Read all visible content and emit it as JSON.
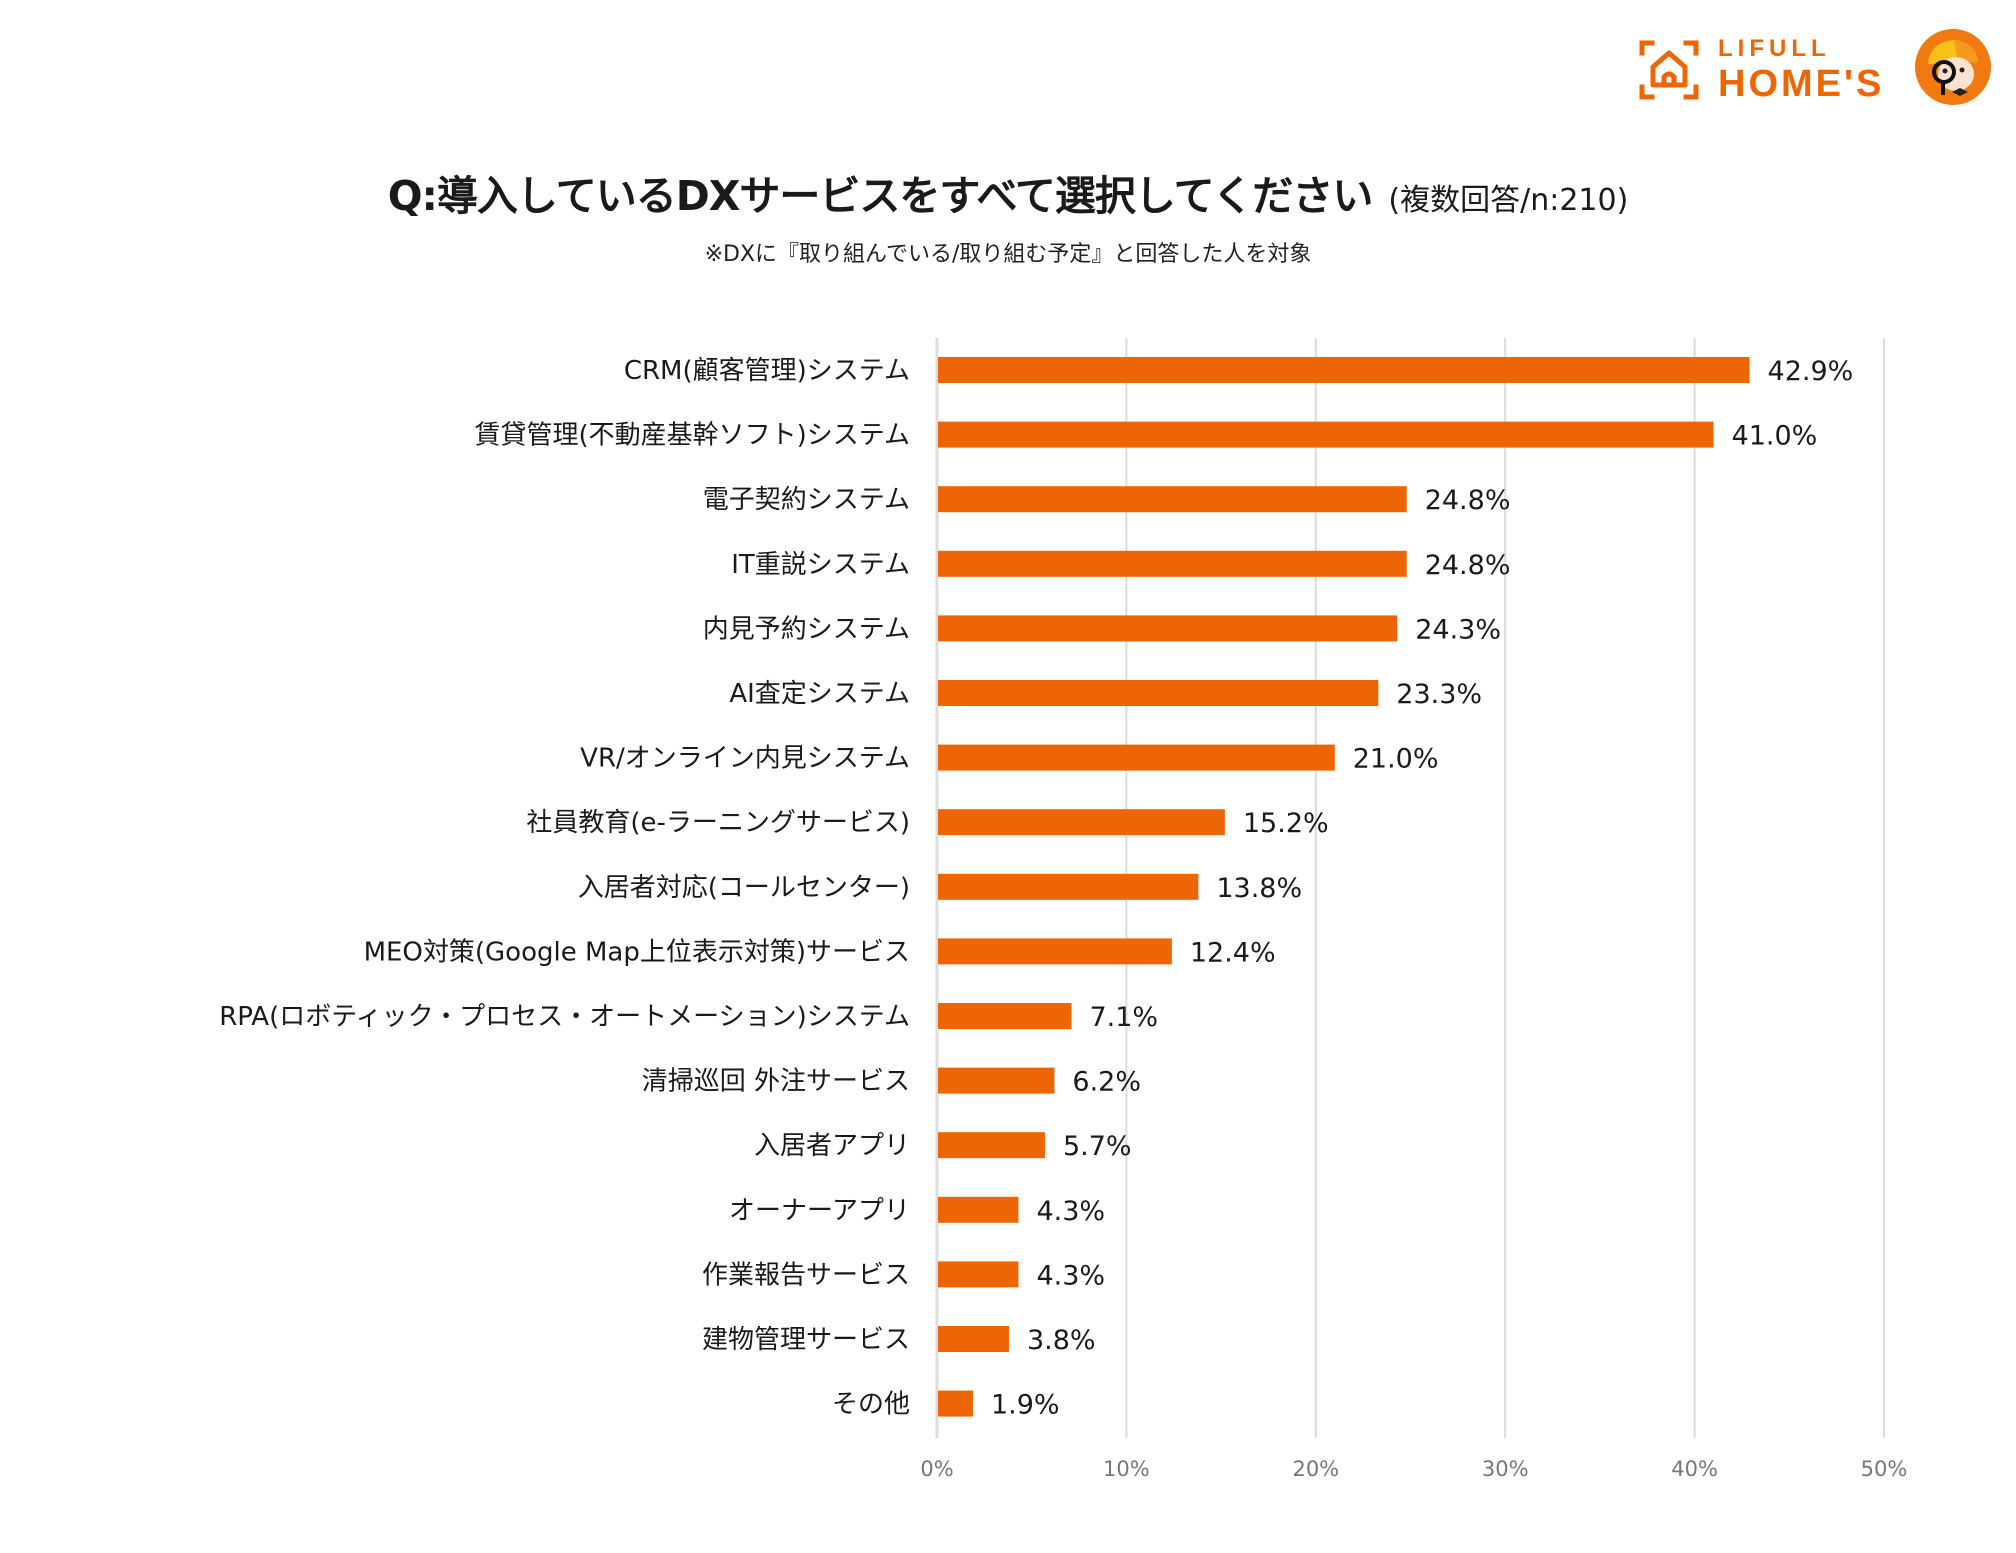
{
  "brand": {
    "line1": "LIFULL",
    "line2": "HOME'S",
    "color": "#ee6505"
  },
  "title": {
    "main": "Q:導入しているDXサービスをすべて選択してください",
    "note": "(複数回答/n:210)",
    "subtitle": "※DXに『取り組んでいる/取り組む予定』と回答した人を対象"
  },
  "chart_data": {
    "type": "bar",
    "orientation": "horizontal",
    "title": "Q:導入しているDXサービスをすべて選択してください(複数回答/n:210)",
    "subtitle": "※DXに『取り組んでいる/取り組む予定』と回答した人を対象",
    "xlabel": "",
    "ylabel": "",
    "xlim": [
      0,
      50
    ],
    "xticks": [
      0,
      10,
      20,
      30,
      40,
      50
    ],
    "xtick_labels": [
      "0%",
      "10%",
      "20%",
      "30%",
      "40%",
      "50%"
    ],
    "grid": true,
    "bar_color": "#ee6505",
    "categories": [
      "CRM(顧客管理)システム",
      "賃貸管理(不動産基幹ソフト)システム",
      "電子契約システム",
      "IT重説システム",
      "内見予約システム",
      "AI査定システム",
      "VR/オンライン内見システム",
      "社員教育(e-ラーニングサービス)",
      "入居者対応(コールセンター)",
      "MEO対策(Google Map上位表示対策)サービス",
      "RPA(ロボティック・プロセス・オートメーション)システム",
      "清掃巡回 外注サービス",
      "入居者アプリ",
      "オーナーアプリ",
      "作業報告サービス",
      "建物管理サービス",
      "その他"
    ],
    "values": [
      42.9,
      41.0,
      24.8,
      24.8,
      24.3,
      23.3,
      21.0,
      15.2,
      13.8,
      12.4,
      7.1,
      6.2,
      5.7,
      4.3,
      4.3,
      3.8,
      1.9
    ],
    "value_labels": [
      "42.9%",
      "41.0%",
      "24.8%",
      "24.8%",
      "24.3%",
      "23.3%",
      "21.0%",
      "15.2%",
      "13.8%",
      "12.4%",
      "7.1%",
      "6.2%",
      "5.7%",
      "4.3%",
      "4.3%",
      "3.8%",
      "1.9%"
    ]
  }
}
